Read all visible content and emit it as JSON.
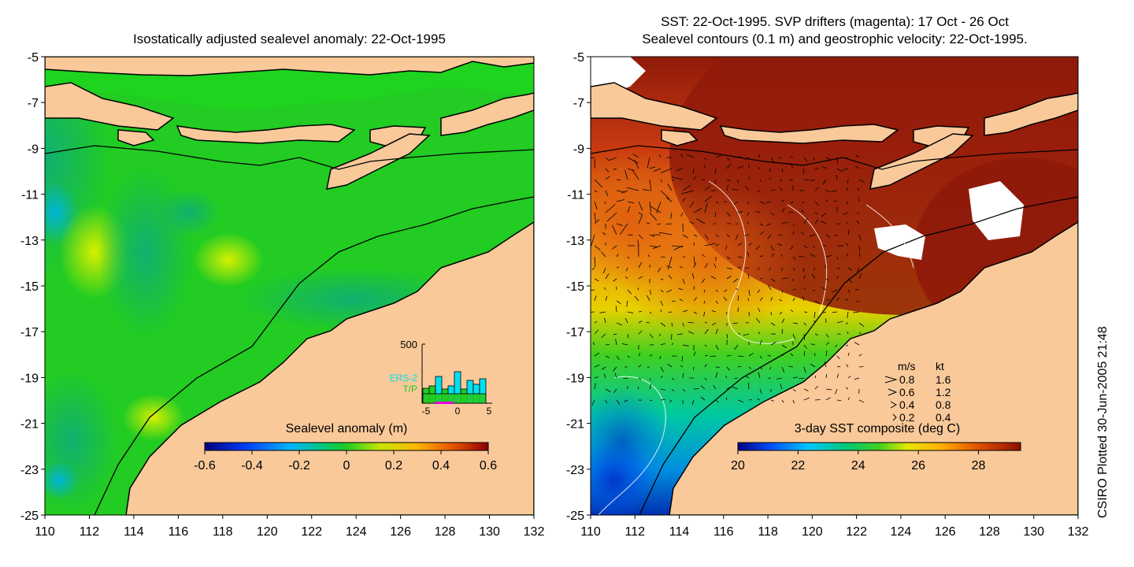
{
  "left_panel": {
    "title": "Isostatically adjusted sealevel anomaly: 22-Oct-1995",
    "x_ticks": [
      "110",
      "112",
      "114",
      "116",
      "118",
      "120",
      "122",
      "124",
      "126",
      "128",
      "130",
      "132"
    ],
    "y_ticks": [
      "-5",
      "-7",
      "-9",
      "-11",
      "-13",
      "-15",
      "-17",
      "-19",
      "-21",
      "-23",
      "-25"
    ],
    "colorbar_label": "Sealevel anomaly (m)",
    "colorbar_ticks": [
      "-0.6",
      "-0.4",
      "-0.2",
      "0",
      "0.2",
      "0.4",
      "0.6"
    ],
    "inset": {
      "ymax_label": "500",
      "legend": [
        "ERS-2",
        "T/P"
      ],
      "x_ticks": [
        "-5",
        "0",
        "5"
      ]
    }
  },
  "right_panel": {
    "title_line1": "SST: 22-Oct-1995. SVP drifters (magenta): 17 Oct - 26 Oct",
    "title_line2": "Sealevel contours (0.1 m) and geostrophic velocity: 22-Oct-1995.",
    "x_ticks": [
      "110",
      "112",
      "114",
      "116",
      "118",
      "120",
      "122",
      "124",
      "126",
      "128",
      "130",
      "132"
    ],
    "y_ticks": [
      "-5",
      "-7",
      "-9",
      "-11",
      "-13",
      "-15",
      "-17",
      "-19",
      "-21",
      "-23",
      "-25"
    ],
    "colorbar_label": "3-day SST composite (deg C)",
    "colorbar_ticks": [
      "20",
      "22",
      "24",
      "26",
      "28"
    ],
    "speed_legend": {
      "header_ms": "m/s",
      "header_kt": "kt",
      "rows": [
        {
          "ms": "0.8",
          "kt": "1.6"
        },
        {
          "ms": "0.6",
          "kt": "1.2"
        },
        {
          "ms": "0.4",
          "kt": "0.8"
        },
        {
          "ms": "0.2",
          "kt": "0.4"
        }
      ]
    }
  },
  "footer": {
    "plot_credit": "CSIRO Plotted 30-Jun-2005 21:48"
  },
  "colors": {
    "land": "#f9c99a",
    "ocean_green": "#22cc22",
    "sst_red": "#8f1a0a"
  }
}
